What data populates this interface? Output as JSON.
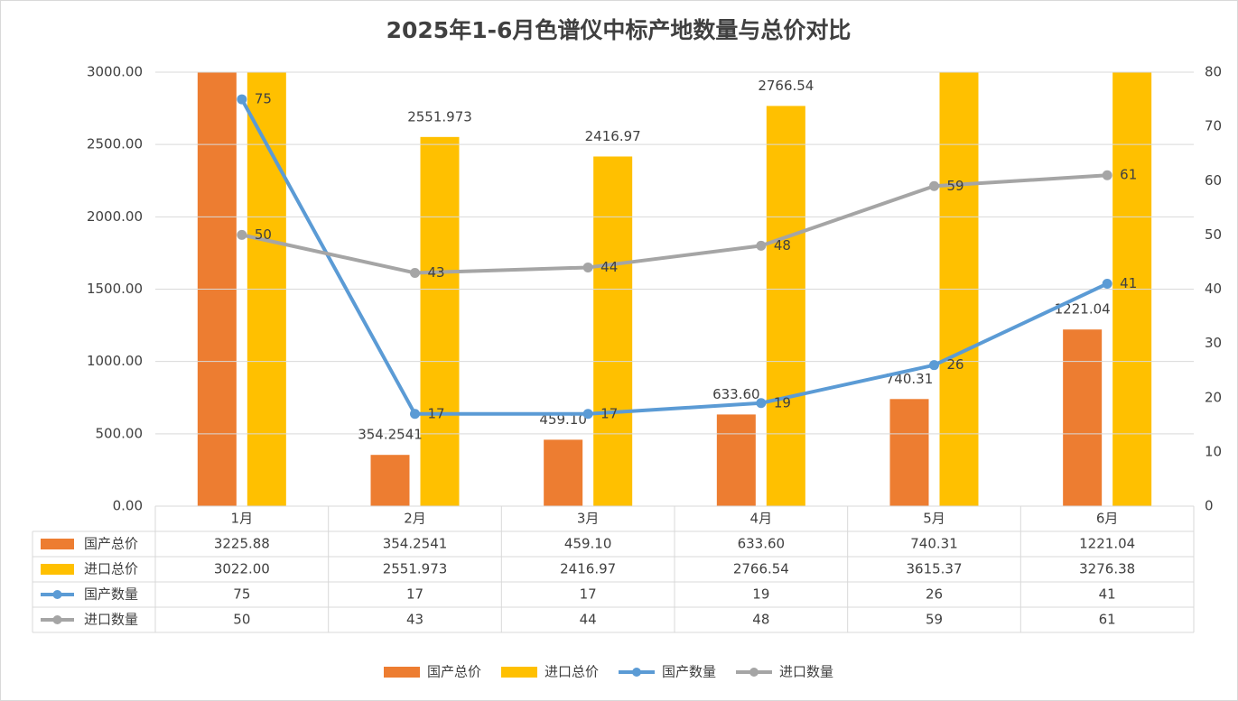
{
  "chart_data": {
    "type": "bar_line_table",
    "title": "2025年1-6月色谱仪中标产地数量与总价对比",
    "categories": [
      "1月",
      "2月",
      "3月",
      "4月",
      "5月",
      "6月"
    ],
    "series": [
      {
        "name": "国产总价",
        "type": "bar",
        "color": "#ED7D31",
        "values": [
          3225.88,
          354.2541,
          459.1,
          633.6,
          740.31,
          1221.04
        ],
        "value_labels": [
          "3225.88",
          "354.2541",
          "459.10",
          "633.60",
          "740.31",
          "1221.04"
        ]
      },
      {
        "name": "进口总价",
        "type": "bar",
        "color": "#FFC000",
        "values": [
          3022,
          2551.973,
          2416.97,
          2766.54,
          3615.37,
          3276.38
        ],
        "value_labels": [
          "3022.00",
          "2551.973",
          "2416.97",
          "2766.54",
          "3615.37",
          "3276.38"
        ]
      },
      {
        "name": "国产数量",
        "type": "line",
        "axis": "y2",
        "color": "#5B9BD5",
        "values": [
          75,
          17,
          17,
          19,
          26,
          41
        ]
      },
      {
        "name": "进口数量",
        "type": "line",
        "axis": "y2",
        "color": "#A5A5A5",
        "values": [
          50,
          43,
          44,
          48,
          59,
          61
        ]
      }
    ],
    "ylim": [
      0,
      3000
    ],
    "yticks": [
      {
        "value": 0,
        "label": "0.00"
      },
      {
        "value": 500,
        "label": "500.00"
      },
      {
        "value": 1000,
        "label": "1000.00"
      },
      {
        "value": 1500,
        "label": "1500.00"
      },
      {
        "value": 2000,
        "label": "2000.00"
      },
      {
        "value": 2500,
        "label": "2500.00"
      },
      {
        "value": 3000,
        "label": "3000.00"
      }
    ],
    "y2lim": [
      0,
      80
    ],
    "y2ticks": [
      0,
      10,
      20,
      30,
      40,
      50,
      60,
      70,
      80
    ],
    "grid": true,
    "legend": "bottom"
  }
}
